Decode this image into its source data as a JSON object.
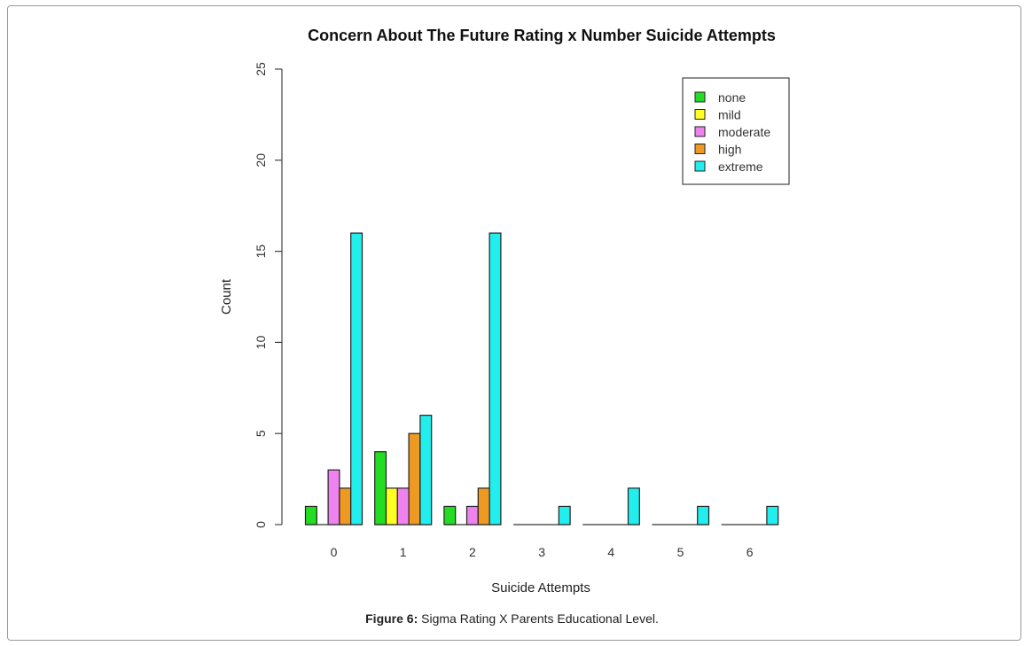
{
  "chart_data": {
    "type": "bar",
    "title": "Concern About The Future Rating x Number Suicide Attempts",
    "xlabel": "Suicide Attempts",
    "ylabel": "Count",
    "ylim": [
      0,
      25
    ],
    "yticks": [
      "0",
      "5",
      "10",
      "15",
      "20",
      "25"
    ],
    "categories": [
      "0",
      "1",
      "2",
      "3",
      "4",
      "5",
      "6"
    ],
    "series": [
      {
        "name": "none",
        "color": "#22dd22",
        "values": [
          1,
          4,
          1,
          0,
          0,
          0,
          0
        ]
      },
      {
        "name": "mild",
        "color": "#ffff22",
        "values": [
          0,
          2,
          0,
          0,
          0,
          0,
          0
        ]
      },
      {
        "name": "moderate",
        "color": "#ee82ee",
        "values": [
          3,
          2,
          1,
          0,
          0,
          0,
          0
        ]
      },
      {
        "name": "high",
        "color": "#ee9a22",
        "values": [
          2,
          5,
          2,
          0,
          0,
          0,
          0
        ]
      },
      {
        "name": "extreme",
        "color": "#22eeee",
        "values": [
          16,
          6,
          16,
          1,
          2,
          1,
          1
        ]
      }
    ],
    "legend_position": "top-right",
    "grid": false
  },
  "caption": {
    "label": "Figure 6:",
    "text": "Sigma Rating X Parents Educational Level."
  }
}
